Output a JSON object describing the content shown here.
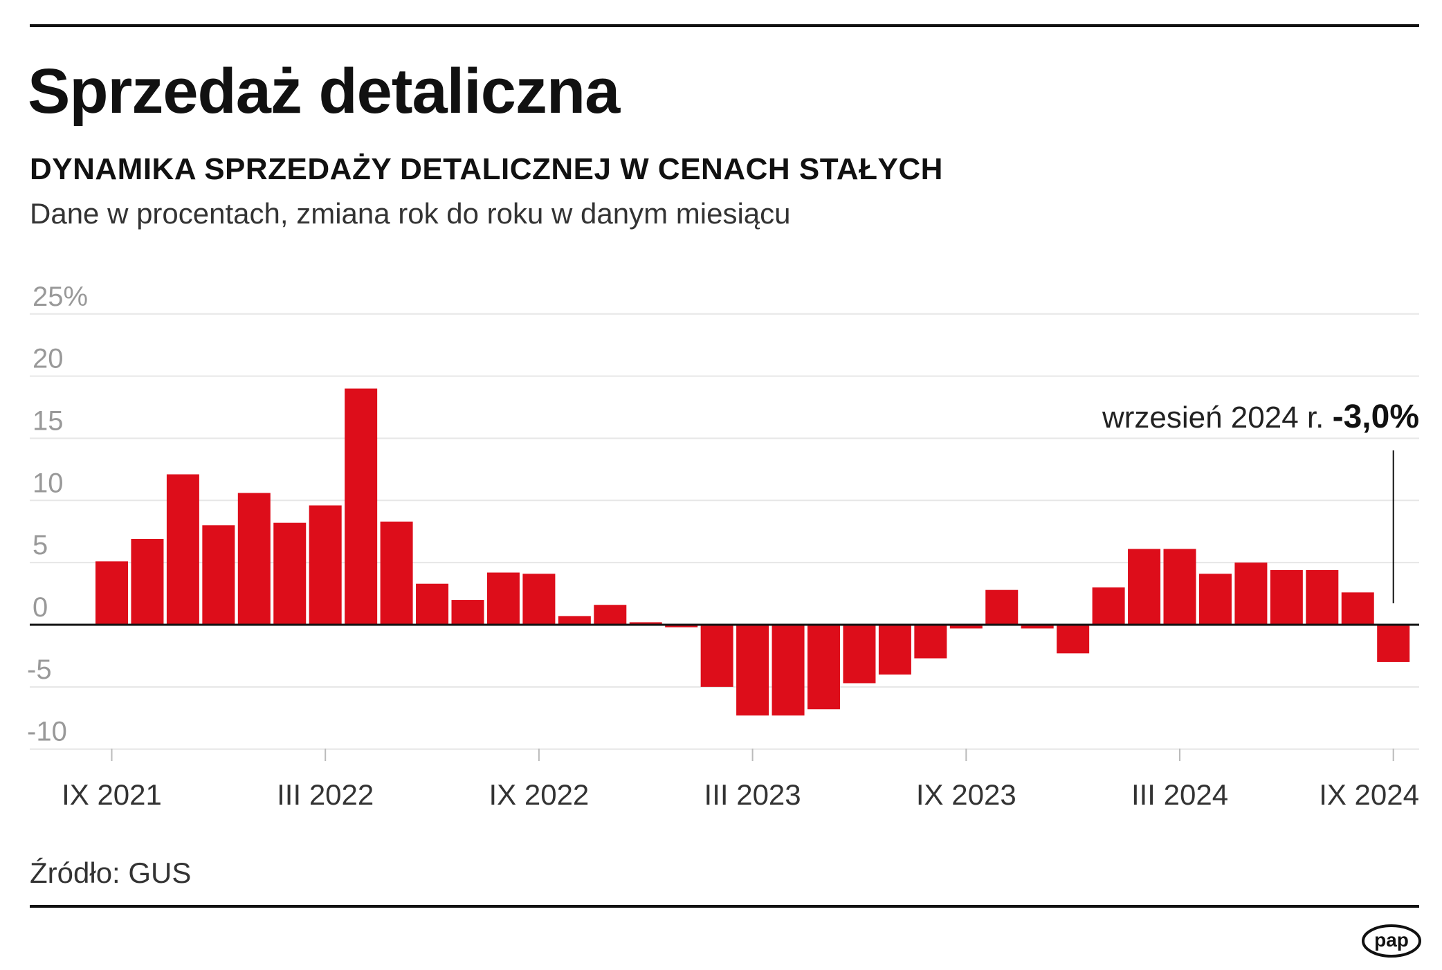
{
  "title": "Sprzedaż detaliczna",
  "subtitle": "DYNAMIKA SPRZEDAŻY DETALICZNEJ W CENACH STAŁYCH",
  "description": "Dane w procentach, zmiana rok do roku w danym miesiącu",
  "source": "Źródło: GUS",
  "logo_text": "pap",
  "annotation": {
    "label": "wrzesień 2024 r.",
    "value": "-3,0%"
  },
  "colors": {
    "bar": "#DD0D1A",
    "grid": "#E6E6E6",
    "axis": "#111111",
    "tick_label": "#999999"
  },
  "chart_data": {
    "type": "bar",
    "title": "DYNAMIKA SPRZEDAŻY DETALICZNEJ W CENACH STAŁYCH",
    "ylim": [
      -10,
      25
    ],
    "yticks": [
      25,
      20,
      15,
      10,
      5,
      0,
      -5,
      -10
    ],
    "ytick_labels": [
      "25%",
      "20",
      "15",
      "10",
      "5",
      "0",
      "-5",
      "-10"
    ],
    "grid": true,
    "categories": [
      "IX 2021",
      "X 2021",
      "XI 2021",
      "XII 2021",
      "I 2022",
      "II 2022",
      "III 2022",
      "IV 2022",
      "V 2022",
      "VI 2022",
      "VII 2022",
      "VIII 2022",
      "IX 2022",
      "X 2022",
      "XI 2022",
      "XII 2022",
      "I 2023",
      "II 2023",
      "III 2023",
      "IV 2023",
      "V 2023",
      "VI 2023",
      "VII 2023",
      "VIII 2023",
      "IX 2023",
      "X 2023",
      "XI 2023",
      "XII 2023",
      "I 2024",
      "II 2024",
      "III 2024",
      "IV 2024",
      "V 2024",
      "VI 2024",
      "VII 2024",
      "VIII 2024",
      "IX 2024"
    ],
    "values": [
      5.1,
      6.9,
      12.1,
      8.0,
      10.6,
      8.2,
      9.6,
      19.0,
      8.3,
      3.3,
      2.0,
      4.2,
      4.1,
      0.7,
      1.6,
      0.2,
      -0.2,
      -5.0,
      -7.3,
      -7.3,
      -6.8,
      -4.7,
      -4.0,
      -2.7,
      -0.3,
      2.8,
      -0.3,
      -2.3,
      3.0,
      6.1,
      6.1,
      4.1,
      5.0,
      4.4,
      4.4,
      2.6,
      -3.0
    ],
    "xtick_labels": [
      {
        "category": "IX 2021",
        "label": "IX 2021"
      },
      {
        "category": "III 2022",
        "label": "III 2022"
      },
      {
        "category": "IX 2022",
        "label": "IX 2022"
      },
      {
        "category": "III 2023",
        "label": "III 2023"
      },
      {
        "category": "IX 2023",
        "label": "IX 2023"
      },
      {
        "category": "III 2024",
        "label": "III 2024"
      },
      {
        "category": "IX 2024",
        "label": "IX 2024"
      }
    ]
  }
}
